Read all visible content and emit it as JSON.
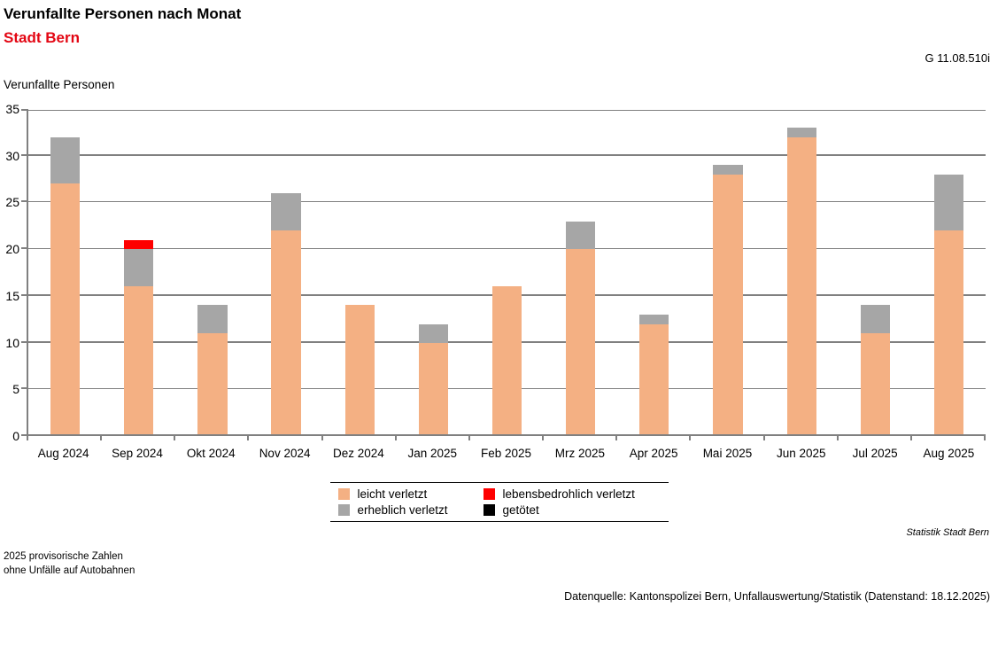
{
  "header": {
    "title": "Verunfallte Personen nach Monat",
    "subtitle": "Stadt Bern",
    "graph_id": "G 11.08.510i"
  },
  "chart_data": {
    "type": "bar",
    "stacked": true,
    "title": "Verunfallte Personen nach Monat",
    "subtitle": "Stadt Bern",
    "ylabel": "Verunfallte Personen",
    "xlabel": "",
    "ylim": [
      0,
      35
    ],
    "ytick_step": 5,
    "grid": true,
    "legend_position": "bottom",
    "categories": [
      "Aug 2024",
      "Sep 2024",
      "Okt 2024",
      "Nov 2024",
      "Dez 2024",
      "Jan 2025",
      "Feb 2025",
      "Mrz 2025",
      "Apr 2025",
      "Mai 2025",
      "Jun 2025",
      "Jul 2025",
      "Aug 2025"
    ],
    "series": [
      {
        "name": "leicht verletzt",
        "color": "#F4B083",
        "values": [
          27,
          16,
          11,
          22,
          14,
          10,
          16,
          20,
          12,
          28,
          32,
          11,
          22
        ]
      },
      {
        "name": "erheblich verletzt",
        "color": "#A6A6A6",
        "values": [
          5,
          4,
          3,
          4,
          0,
          2,
          0,
          3,
          1,
          1,
          1,
          3,
          6
        ]
      },
      {
        "name": "lebensbedrohlich verletzt",
        "color": "#FE0000",
        "values": [
          0,
          1,
          0,
          0,
          0,
          0,
          0,
          0,
          0,
          0,
          0,
          0,
          0
        ]
      },
      {
        "name": "getötet",
        "color": "#000000",
        "values": [
          0,
          0,
          0,
          0,
          0,
          0,
          0,
          0,
          0,
          0,
          0,
          0,
          0
        ]
      }
    ],
    "totals": [
      32,
      21,
      14,
      26,
      14,
      12,
      16,
      23,
      13,
      29,
      33,
      14,
      28
    ],
    "legend_order": [
      0,
      2,
      1,
      3
    ]
  },
  "footer": {
    "source_attribution": "Statistik Stadt Bern",
    "note_line1": "2025 provisorische Zahlen",
    "note_line2": "ohne Unfälle auf Autobahnen",
    "datasource": "Datenquelle: Kantonspolizei Bern, Unfallauswertung/Statistik (Datenstand: 18.12.2025)"
  },
  "colors": {
    "subtitle_red": "#E30613",
    "gridline": "#808080",
    "axis": "#808080",
    "legend_border": "#000000"
  }
}
